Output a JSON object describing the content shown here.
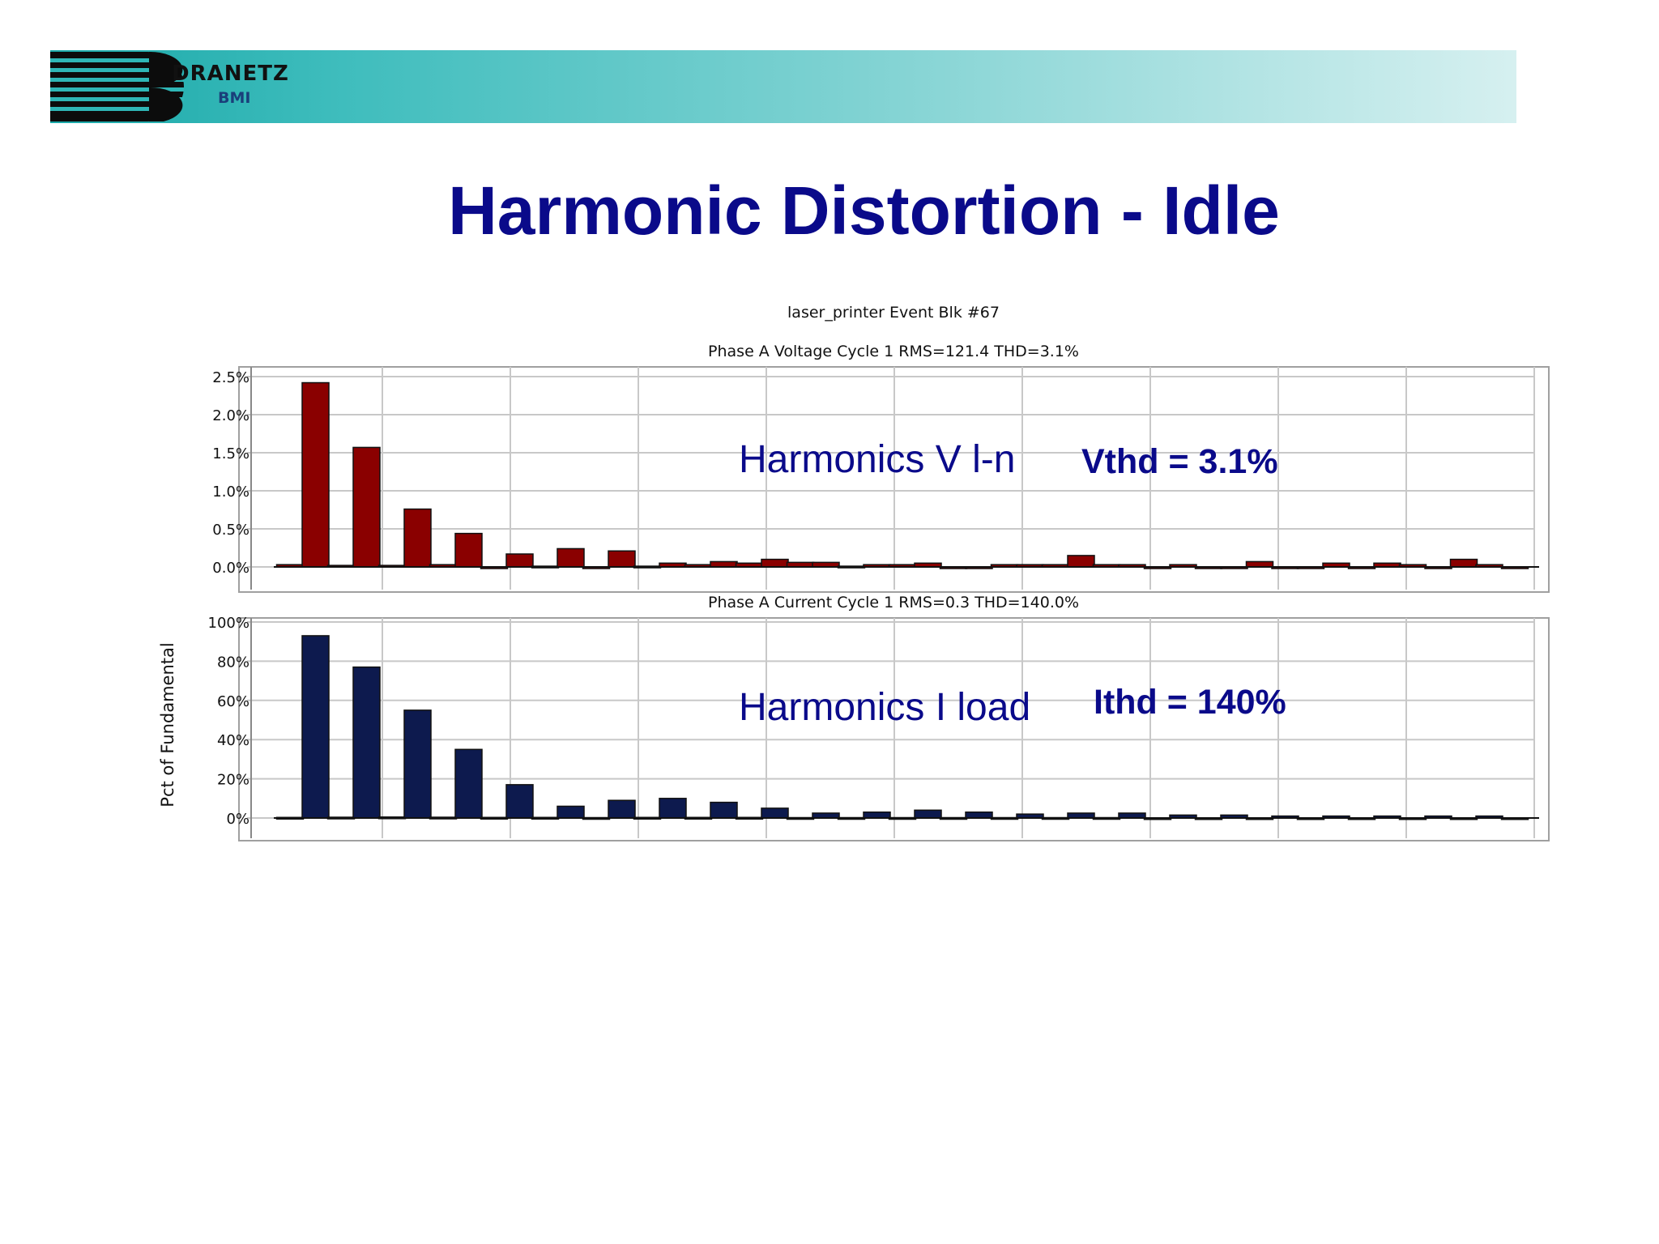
{
  "header": {
    "brand_name": "DRANETZ",
    "brand_sub": "BMI"
  },
  "slide": {
    "title": "Harmonic Distortion - Idle"
  },
  "annotations": {
    "voltage_label": "Harmonics V l-n",
    "voltage_thd": "Vthd = 3.1%",
    "current_label": "Harmonics I load",
    "current_thd": "Ithd = 140%"
  },
  "colors": {
    "voltage_bar": "#8a0000",
    "current_bar": "#0d1a4e",
    "grid": "#c8c8c8",
    "title": "#0a0a8a"
  },
  "chart_data": [
    {
      "type": "bar",
      "figure_title": "laser_printer Event Blk #67",
      "title": "Phase A Voltage Cycle 1 RMS=121.4 THD=3.1%",
      "ylabel": "",
      "yticks": [
        "2.5%",
        "2.0%",
        "1.5%",
        "1.0%",
        "0.5%",
        "0.0%"
      ],
      "ylim": [
        0,
        2.5
      ],
      "grid": true,
      "x": [
        2,
        3,
        4,
        5,
        6,
        7,
        8,
        9,
        10,
        11,
        12,
        13,
        14,
        15,
        16,
        17,
        18,
        19,
        20,
        21,
        22,
        23,
        24,
        25,
        26,
        27,
        28,
        29,
        30,
        31,
        32,
        33,
        34,
        35,
        36,
        37,
        38,
        39,
        40,
        41,
        42,
        43,
        44,
        45,
        46,
        47,
        48,
        49,
        50
      ],
      "values": [
        0.03,
        2.42,
        0.02,
        1.57,
        0.02,
        0.76,
        0.03,
        0.44,
        -0.02,
        0.17,
        0.01,
        0.24,
        -0.02,
        0.21,
        0.01,
        0.05,
        0.03,
        0.07,
        0.05,
        0.1,
        0.06,
        0.06,
        0.01,
        0.03,
        0.03,
        0.05,
        0.0,
        0.0,
        0.03,
        0.03,
        0.03,
        0.15,
        0.03,
        0.03,
        0.0,
        0.03,
        0.0,
        0.0,
        0.07,
        0.0,
        0.0,
        0.05,
        0.0,
        0.05,
        0.03,
        0.0,
        0.1,
        0.03,
        0.0
      ]
    },
    {
      "type": "bar",
      "title": "Phase A Current Cycle 1 RMS=0.3 THD=140.0%",
      "ylabel": "Pct of Fundamental",
      "yticks": [
        "100%",
        "80%",
        "60%",
        "40%",
        "20%",
        "0%"
      ],
      "ylim": [
        0,
        100
      ],
      "grid": true,
      "x": [
        2,
        3,
        4,
        5,
        6,
        7,
        8,
        9,
        10,
        11,
        12,
        13,
        14,
        15,
        16,
        17,
        18,
        19,
        20,
        21,
        22,
        23,
        24,
        25,
        26,
        27,
        28,
        29,
        30,
        31,
        32,
        33,
        34,
        35,
        36,
        37,
        38,
        39,
        40,
        41,
        42,
        43,
        44,
        45,
        46,
        47,
        48,
        49,
        50
      ],
      "values": [
        0.3,
        93,
        0.4,
        77,
        0.5,
        55,
        0.4,
        35,
        0.3,
        17,
        0.3,
        6,
        0.2,
        9,
        0.3,
        10,
        0.3,
        8,
        0.3,
        5,
        0.2,
        2.5,
        0.2,
        3,
        0.2,
        4,
        0.2,
        3,
        0.2,
        2,
        0.2,
        2.5,
        0.2,
        2.5,
        0.1,
        1.5,
        0.1,
        1.5,
        0.1,
        1,
        0.1,
        1,
        0.1,
        1,
        0.1,
        1,
        0.1,
        1,
        0.1
      ]
    }
  ]
}
